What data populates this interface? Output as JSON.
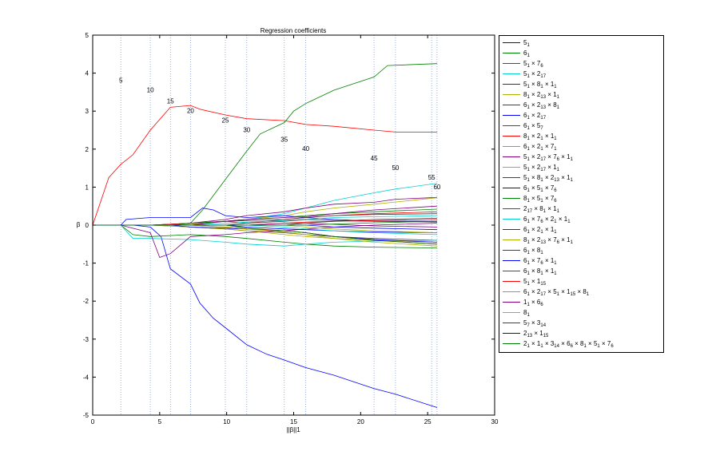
{
  "chart_data": {
    "type": "line",
    "title": "Regression coefficients",
    "xlabel": "||β||1",
    "ylabel": "β",
    "xlim": [
      0,
      30
    ],
    "ylim": [
      -5,
      5
    ],
    "xticks": [
      0,
      5,
      10,
      15,
      20,
      25,
      30
    ],
    "yticks": [
      -5,
      -4,
      -3,
      -2,
      -1,
      0,
      1,
      2,
      3,
      4,
      5
    ],
    "grid": false,
    "legend_position": "outside-right",
    "step_lines": [
      2.1,
      4.3,
      5.8,
      7.3,
      9.9,
      11.5,
      14.3,
      15.9,
      21.0,
      22.6,
      25.3,
      25.7
    ],
    "step_annotations": [
      {
        "label": "5",
        "x": 2.1,
        "y": 3.75
      },
      {
        "label": "10",
        "x": 4.3,
        "y": 3.5
      },
      {
        "label": "15",
        "x": 5.8,
        "y": 3.2
      },
      {
        "label": "20",
        "x": 7.3,
        "y": 2.95
      },
      {
        "label": "25",
        "x": 9.9,
        "y": 2.7
      },
      {
        "label": "30",
        "x": 11.5,
        "y": 2.45
      },
      {
        "label": "35",
        "x": 14.3,
        "y": 2.2
      },
      {
        "label": "40",
        "x": 15.9,
        "y": 1.95
      },
      {
        "label": "45",
        "x": 21.0,
        "y": 1.7
      },
      {
        "label": "50",
        "x": 22.6,
        "y": 1.45
      },
      {
        "label": "55",
        "x": 25.3,
        "y": 1.2
      },
      {
        "label": "60",
        "x": 25.7,
        "y": 0.95
      }
    ],
    "series": [
      {
        "label": "5|1",
        "color": "#0000ff",
        "x": [
          0,
          2.1,
          3.0,
          4.3,
          5.1,
          5.8,
          7.3,
          8.0,
          9.0,
          9.9,
          11.5,
          13.0,
          14.3,
          15.9,
          18.0,
          21.0,
          22.6,
          25.7
        ],
        "y": [
          0,
          0,
          0,
          -0.05,
          -0.3,
          -1.15,
          -1.55,
          -2.05,
          -2.45,
          -2.7,
          -3.15,
          -3.4,
          -3.55,
          -3.75,
          -3.95,
          -4.3,
          -4.45,
          -4.8
        ]
      },
      {
        "label": "6|1",
        "color": "#008000",
        "x": [
          0,
          4.3,
          7.3,
          8.2,
          9.9,
          11.5,
          12.5,
          14.3,
          15.0,
          15.9,
          18.0,
          21.0,
          22.0,
          25.7
        ],
        "y": [
          0,
          0,
          0.05,
          0.4,
          1.2,
          1.95,
          2.4,
          2.7,
          3.0,
          3.2,
          3.55,
          3.9,
          4.2,
          4.25
        ]
      },
      {
        "label": "5|1 × 7|6",
        "color": "#ff0000",
        "x": [
          0,
          1.2,
          2.1,
          3.0,
          4.3,
          5.8,
          7.3,
          8.0,
          9.9,
          11.5,
          14.3,
          15.9,
          18.0,
          21.0,
          22.6,
          25.7
        ],
        "y": [
          0,
          1.25,
          1.6,
          1.85,
          2.5,
          3.1,
          3.15,
          3.05,
          2.9,
          2.8,
          2.75,
          2.65,
          2.6,
          2.5,
          2.45,
          2.45
        ]
      },
      {
        "label": "5|1 × 2|17",
        "color": "#00d0d0",
        "x": [
          0,
          2.1,
          4.3,
          7.3,
          9.9,
          11.5,
          14.3,
          15.9,
          18.0,
          21.0,
          22.6,
          25.7
        ],
        "y": [
          0,
          0,
          0,
          0.05,
          0.1,
          0.15,
          0.3,
          0.45,
          0.65,
          0.85,
          0.95,
          1.1
        ]
      },
      {
        "label": "5|1 × 8|1 × 1|1",
        "color": "#800080",
        "x": [
          0,
          2.1,
          4.3,
          7.3,
          9.9,
          11.5,
          14.3,
          15.9,
          18.0,
          21.0,
          22.6,
          25.7
        ],
        "y": [
          0,
          0,
          0,
          0.05,
          0.15,
          0.25,
          0.35,
          0.45,
          0.55,
          0.6,
          0.68,
          0.73
        ]
      },
      {
        "label": "8|1 × 2|13 × 1|1",
        "color": "#b0b000",
        "x": [
          0,
          4.3,
          7.3,
          9.9,
          11.5,
          14.3,
          15.9,
          18.0,
          21.0,
          25.7
        ],
        "y": [
          0,
          0,
          0.02,
          0.1,
          0.15,
          0.25,
          0.35,
          0.45,
          0.55,
          0.72
        ]
      },
      {
        "label": "6|1 × 2|13 × 8|1",
        "color": "#404040",
        "x": [
          0,
          4.3,
          7.3,
          9.9,
          11.5,
          14.3,
          15.9,
          18.0,
          21.0,
          25.7
        ],
        "y": [
          0,
          0,
          -0.05,
          -0.1,
          -0.15,
          -0.2,
          -0.25,
          -0.3,
          -0.35,
          -0.4
        ]
      },
      {
        "label": "6|1 × 2|17",
        "color": "#0000ff",
        "x": [
          0,
          2.1,
          2.5,
          4.3,
          7.3,
          8.2,
          9.0,
          9.9,
          11.5,
          14.3,
          15.9,
          18.0,
          21.0,
          25.7
        ],
        "y": [
          0,
          0,
          0.15,
          0.2,
          0.2,
          0.45,
          0.4,
          0.25,
          0.2,
          0.25,
          0.2,
          0.15,
          0.1,
          0.1
        ]
      },
      {
        "label": "6|1 × 5|7",
        "color": "#008000",
        "x": [
          0,
          2.1,
          3.0,
          4.3,
          7.3,
          9.9,
          11.5,
          14.3,
          15.9,
          18.0,
          21.0,
          25.7
        ],
        "y": [
          0,
          0,
          -0.25,
          -0.3,
          -0.25,
          -0.3,
          -0.35,
          -0.45,
          -0.5,
          -0.55,
          -0.58,
          -0.6
        ]
      },
      {
        "label": "8|1 × 2|1 × 1|1",
        "color": "#ff0000",
        "x": [
          0,
          4.3,
          7.3,
          9.9,
          11.5,
          14.3,
          15.9,
          18.0,
          21.0,
          25.7
        ],
        "y": [
          0,
          0,
          0.05,
          0.1,
          0.05,
          0.15,
          0.2,
          0.25,
          0.3,
          0.35
        ]
      },
      {
        "label": "6|1 × 2|1 × 7|1",
        "color": "#00d0d0",
        "x": [
          0,
          2.1,
          3.0,
          4.3,
          7.3,
          9.9,
          11.5,
          14.3,
          15.9,
          18.0,
          21.0,
          25.7
        ],
        "y": [
          0,
          0,
          -0.35,
          -0.35,
          -0.38,
          -0.45,
          -0.5,
          -0.55,
          -0.5,
          -0.45,
          -0.42,
          -0.4
        ]
      },
      {
        "label": "5|1 × 2|17 × 7|6 × 1|1",
        "color": "#800080",
        "x": [
          0,
          2.1,
          4.3,
          5.0,
          5.8,
          7.3,
          9.9,
          11.5,
          14.3,
          15.9,
          18.0,
          21.0,
          25.7
        ],
        "y": [
          0,
          0,
          -0.2,
          -0.85,
          -0.75,
          -0.3,
          -0.25,
          -0.2,
          -0.15,
          -0.1,
          -0.05,
          0,
          0.05
        ]
      },
      {
        "label": "5|1 × 2|17 × 1|1",
        "color": "#b0b000",
        "x": [
          0,
          4.3,
          7.3,
          9.9,
          11.5,
          14.3,
          15.9,
          18.0,
          21.0,
          25.7
        ],
        "y": [
          0,
          0,
          -0.05,
          -0.1,
          -0.15,
          -0.25,
          -0.3,
          -0.35,
          -0.4,
          -0.45
        ]
      },
      {
        "label": "5|1 × 8|1 × 2|13 × 1|1",
        "color": "#404040",
        "x": [
          0,
          5.8,
          7.3,
          9.9,
          11.5,
          14.3,
          15.9,
          18.0,
          21.0,
          25.7
        ],
        "y": [
          0,
          0,
          0.05,
          0.1,
          0.12,
          0.15,
          0.2,
          0.25,
          0.28,
          0.3
        ]
      },
      {
        "label": "6|1 × 5|1 × 7|6",
        "color": "#0000ff",
        "x": [
          0,
          5.8,
          7.3,
          9.9,
          11.5,
          14.3,
          15.9,
          18.0,
          21.0,
          25.7
        ],
        "y": [
          0,
          0,
          -0.05,
          -0.08,
          -0.1,
          -0.15,
          -0.2,
          -0.3,
          -0.38,
          -0.45
        ]
      },
      {
        "label": "8|1 × 5|1 × 7|6",
        "color": "#008000",
        "x": [
          0,
          5.8,
          7.3,
          9.9,
          11.5,
          14.3,
          15.9,
          18.0,
          21.0,
          25.7
        ],
        "y": [
          0,
          0,
          0.05,
          0.1,
          0.15,
          0.2,
          0.25,
          0.3,
          0.35,
          0.42
        ]
      },
      {
        "label": "2|17 × 8|1 × 1|1",
        "color": "#ff0000",
        "x": [
          0,
          7.3,
          9.9,
          11.5,
          14.3,
          15.9,
          18.0,
          21.0,
          25.7
        ],
        "y": [
          0,
          0,
          -0.05,
          -0.1,
          -0.15,
          -0.2,
          -0.3,
          -0.4,
          -0.5
        ]
      },
      {
        "label": "6|1 × 7|6 × 2|1 × 1|1",
        "color": "#00d0d0",
        "x": [
          0,
          7.3,
          9.9,
          11.5,
          14.3,
          15.9,
          18.0,
          21.0,
          25.7
        ],
        "y": [
          0,
          0,
          0.05,
          0.08,
          0.12,
          0.15,
          0.2,
          0.22,
          0.25
        ]
      },
      {
        "label": "6|1 × 2|1 × 1|1",
        "color": "#800080",
        "x": [
          0,
          7.3,
          9.9,
          11.5,
          14.3,
          15.9,
          18.0,
          21.0,
          25.7
        ],
        "y": [
          0,
          0,
          0.1,
          0.15,
          0.2,
          0.22,
          0.3,
          0.4,
          0.5
        ]
      },
      {
        "label": "8|1 × 2|13 × 7|6 × 1|1",
        "color": "#b0b000",
        "x": [
          0,
          7.3,
          9.9,
          11.5,
          14.3,
          15.9,
          18.0,
          21.0,
          25.7
        ],
        "y": [
          0,
          0,
          -0.05,
          -0.1,
          -0.18,
          -0.25,
          -0.35,
          -0.45,
          -0.55
        ]
      },
      {
        "label": "6|1 × 8|1",
        "color": "#404040",
        "x": [
          0,
          9.9,
          11.5,
          14.3,
          15.9,
          18.0,
          21.0,
          25.7
        ],
        "y": [
          0,
          0,
          0.05,
          0.1,
          0.15,
          0.12,
          0.1,
          0.08
        ]
      },
      {
        "label": "6|1 × 7|6 × 1|1",
        "color": "#0000ff",
        "x": [
          0,
          9.9,
          11.5,
          14.3,
          15.9,
          18.0,
          21.0,
          25.7
        ],
        "y": [
          0,
          0,
          -0.05,
          -0.1,
          -0.12,
          -0.15,
          -0.18,
          -0.2
        ]
      },
      {
        "label": "6|1 × 8|1 × 1|1",
        "color": "#008000",
        "x": [
          0,
          9.9,
          11.5,
          14.3,
          15.9,
          18.0,
          21.0,
          25.7
        ],
        "y": [
          0,
          0,
          -0.08,
          -0.15,
          -0.2,
          -0.3,
          -0.4,
          -0.5
        ]
      },
      {
        "label": "5|1 × 1|15",
        "color": "#ff0000",
        "x": [
          0,
          11.5,
          14.3,
          15.9,
          18.0,
          21.0,
          25.7
        ],
        "y": [
          0,
          0,
          0.05,
          0.08,
          0.1,
          0.12,
          0.15
        ]
      },
      {
        "label": "6|1 × 2|17 × 5|1 × 1|15 × 8|1",
        "color": "#00d0d0",
        "x": [
          0,
          11.5,
          14.3,
          15.9,
          18.0,
          21.0,
          25.7
        ],
        "y": [
          0,
          0,
          -0.05,
          -0.1,
          -0.15,
          -0.2,
          -0.25
        ]
      },
      {
        "label": "1|1 × 6|6",
        "color": "#800080",
        "x": [
          0,
          11.5,
          14.3,
          15.9,
          18.0,
          21.0,
          25.7
        ],
        "y": [
          0,
          0,
          0.05,
          0.05,
          0.02,
          -0.02,
          -0.05
        ]
      },
      {
        "label": "8|1",
        "color": "#b0b000",
        "x": [
          0,
          14.3,
          15.9,
          18.0,
          21.0,
          25.7
        ],
        "y": [
          0,
          0,
          -0.05,
          -0.1,
          -0.15,
          -0.2
        ]
      },
      {
        "label": "5|7 × 3|14",
        "color": "#404040",
        "x": [
          0,
          14.3,
          15.9,
          18.0,
          21.0,
          25.7
        ],
        "y": [
          0,
          0,
          0.05,
          0.1,
          0.15,
          0.18
        ]
      },
      {
        "label": "2|13 × 1|15",
        "color": "#0000ff",
        "x": [
          0,
          15.9,
          18.0,
          21.0,
          25.7
        ],
        "y": [
          0,
          0,
          -0.05,
          -0.08,
          -0.12
        ]
      },
      {
        "label": "2|1 × 1|1 × 3|14 × 6|6 × 8|1 × 5|1 × 7|6",
        "color": "#008000",
        "x": [
          0,
          15.9,
          18.0,
          21.0,
          25.7
        ],
        "y": [
          0,
          0,
          0.03,
          0.06,
          0.1
        ]
      }
    ]
  }
}
